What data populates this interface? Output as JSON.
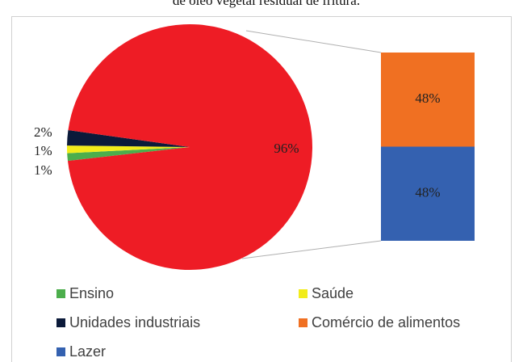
{
  "chart_data": {
    "type": "pie-of-bar",
    "title": "de óleo vegetal residual de fritura.",
    "categories": [
      "Ensino",
      "Saúde",
      "Unidades industriais",
      null
    ],
    "values": [
      1,
      1,
      2,
      96
    ],
    "value_labels": [
      "1%",
      "1%",
      "2%",
      "96%"
    ],
    "colors": [
      "#4cae4c",
      "#f2ec1a",
      "#0b1a3a",
      "#ee1c25"
    ],
    "bar": {
      "categories": [
        "Comércio de alimentos",
        "Lazer"
      ],
      "values": [
        48,
        48
      ],
      "value_labels": [
        "48%",
        "48%"
      ],
      "colors": [
        "#f07022",
        "#3461b0"
      ]
    }
  }
}
